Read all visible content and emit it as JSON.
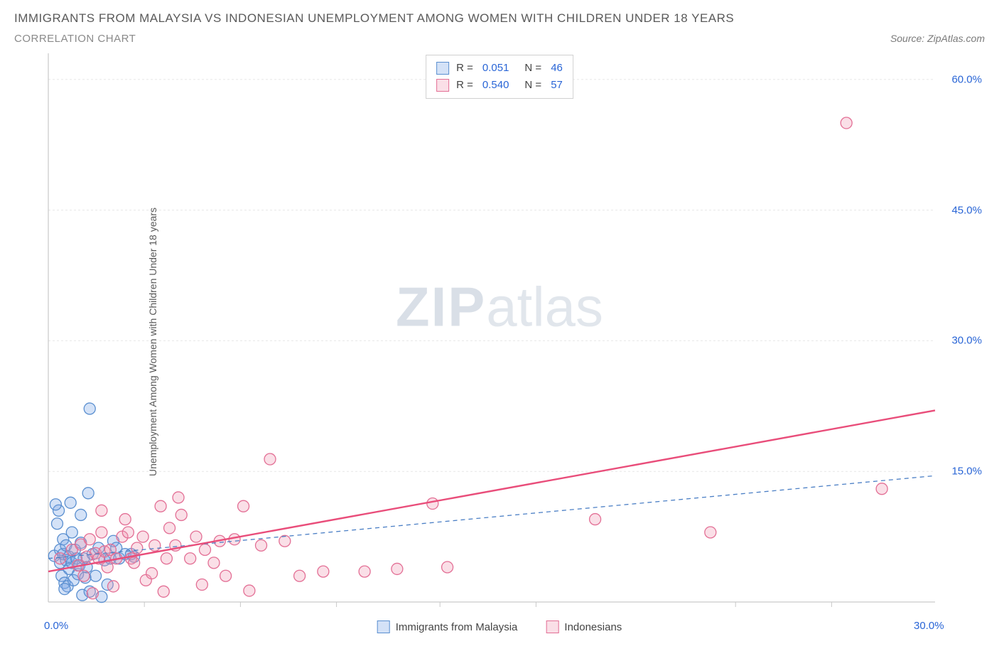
{
  "title": "IMMIGRANTS FROM MALAYSIA VS INDONESIAN UNEMPLOYMENT AMONG WOMEN WITH CHILDREN UNDER 18 YEARS",
  "subtitle": "CORRELATION CHART",
  "source": "Source: ZipAtlas.com",
  "watermark_a": "ZIP",
  "watermark_b": "atlas",
  "chart": {
    "type": "scatter",
    "ylabel": "Unemployment Among Women with Children Under 18 years",
    "xlim": [
      0,
      30
    ],
    "ylim": [
      0,
      63
    ],
    "x_ticks": [
      0.0,
      30.0
    ],
    "x_tick_labels": [
      "0.0%",
      "30.0%"
    ],
    "x_minor_ticks": [
      3.25,
      6.5,
      9.75,
      13.25,
      16.5,
      23.25,
      26.5
    ],
    "y_ticks": [
      15.0,
      30.0,
      45.0,
      60.0
    ],
    "y_tick_labels": [
      "15.0%",
      "30.0%",
      "45.0%",
      "60.0%"
    ],
    "grid_color": "#e7e7e7",
    "axis_color": "#c9c9c9",
    "background_color": "#ffffff",
    "tick_label_color": "#2965d6",
    "marker_radius": 8,
    "marker_stroke_width": 1.3,
    "series": [
      {
        "name": "Immigrants from Malaysia",
        "fill": "rgba(120,165,230,0.32)",
        "stroke": "#5a8fd0",
        "line_color": "#4b7fc5",
        "line_dash": "6 5",
        "line_width": 1.3,
        "R": "0.051",
        "N": "46",
        "trend": {
          "x1": 0,
          "y1": 5.0,
          "x2": 30,
          "y2": 14.5
        },
        "points": [
          [
            0.2,
            5.3
          ],
          [
            0.3,
            9.0
          ],
          [
            0.35,
            10.5
          ],
          [
            0.4,
            4.5
          ],
          [
            0.4,
            6.0
          ],
          [
            0.45,
            3.0
          ],
          [
            0.5,
            5.5
          ],
          [
            0.5,
            7.2
          ],
          [
            0.55,
            2.2
          ],
          [
            0.6,
            4.8
          ],
          [
            0.6,
            6.5
          ],
          [
            0.65,
            1.8
          ],
          [
            0.7,
            5.2
          ],
          [
            0.7,
            3.8
          ],
          [
            0.75,
            11.4
          ],
          [
            0.8,
            4.5
          ],
          [
            0.8,
            8.0
          ],
          [
            0.85,
            2.5
          ],
          [
            0.9,
            6.0
          ],
          [
            0.95,
            5.0
          ],
          [
            1.0,
            3.2
          ],
          [
            1.05,
            4.2
          ],
          [
            1.1,
            6.8
          ],
          [
            1.15,
            0.8
          ],
          [
            1.2,
            5.0
          ],
          [
            1.25,
            2.8
          ],
          [
            1.3,
            4.0
          ],
          [
            1.4,
            1.2
          ],
          [
            1.5,
            5.5
          ],
          [
            1.6,
            3.0
          ],
          [
            1.7,
            6.2
          ],
          [
            1.8,
            0.6
          ],
          [
            1.9,
            4.8
          ],
          [
            2.0,
            2.0
          ],
          [
            2.1,
            5.0
          ],
          [
            2.2,
            7.0
          ],
          [
            2.3,
            6.2
          ],
          [
            2.4,
            5.0
          ],
          [
            2.6,
            5.5
          ],
          [
            2.8,
            5.5
          ],
          [
            2.9,
            5.2
          ],
          [
            1.4,
            22.2
          ],
          [
            1.35,
            12.5
          ],
          [
            1.1,
            10.0
          ],
          [
            0.25,
            11.2
          ],
          [
            0.55,
            1.5
          ]
        ]
      },
      {
        "name": "Indonesians",
        "fill": "rgba(240,150,175,0.30)",
        "stroke": "#e36f95",
        "line_color": "#e94d7a",
        "line_dash": "",
        "line_width": 2.4,
        "R": "0.540",
        "N": "57",
        "trend": {
          "x1": 0,
          "y1": 3.5,
          "x2": 30,
          "y2": 22.0
        },
        "points": [
          [
            0.4,
            5.0
          ],
          [
            0.8,
            6.0
          ],
          [
            1.0,
            4.2
          ],
          [
            1.1,
            6.6
          ],
          [
            1.2,
            3.0
          ],
          [
            1.3,
            5.2
          ],
          [
            1.4,
            7.2
          ],
          [
            1.5,
            1.0
          ],
          [
            1.6,
            5.6
          ],
          [
            1.7,
            5.0
          ],
          [
            1.8,
            8.0
          ],
          [
            1.9,
            5.8
          ],
          [
            2.0,
            4.0
          ],
          [
            2.1,
            6.0
          ],
          [
            2.2,
            1.8
          ],
          [
            2.3,
            5.0
          ],
          [
            2.5,
            7.5
          ],
          [
            2.6,
            9.5
          ],
          [
            2.7,
            8.0
          ],
          [
            2.8,
            5.0
          ],
          [
            2.9,
            4.5
          ],
          [
            3.0,
            6.2
          ],
          [
            3.2,
            7.5
          ],
          [
            3.3,
            2.5
          ],
          [
            3.5,
            3.3
          ],
          [
            3.6,
            6.5
          ],
          [
            3.8,
            11.0
          ],
          [
            3.9,
            1.2
          ],
          [
            4.0,
            5.0
          ],
          [
            4.1,
            8.5
          ],
          [
            4.3,
            6.5
          ],
          [
            4.5,
            10.0
          ],
          [
            4.8,
            5.0
          ],
          [
            5.0,
            7.5
          ],
          [
            5.2,
            2.0
          ],
          [
            5.3,
            6.0
          ],
          [
            5.6,
            4.5
          ],
          [
            5.8,
            7.0
          ],
          [
            6.0,
            3.0
          ],
          [
            6.3,
            7.2
          ],
          [
            6.6,
            11.0
          ],
          [
            6.8,
            1.3
          ],
          [
            7.2,
            6.5
          ],
          [
            7.5,
            16.4
          ],
          [
            8.0,
            7.0
          ],
          [
            8.5,
            3.0
          ],
          [
            9.3,
            3.5
          ],
          [
            10.7,
            3.5
          ],
          [
            11.8,
            3.8
          ],
          [
            13.0,
            11.3
          ],
          [
            13.5,
            4.0
          ],
          [
            18.5,
            9.5
          ],
          [
            22.4,
            8.0
          ],
          [
            27.0,
            55.0
          ],
          [
            28.2,
            13.0
          ],
          [
            1.8,
            10.5
          ],
          [
            4.4,
            12.0
          ]
        ]
      }
    ]
  }
}
